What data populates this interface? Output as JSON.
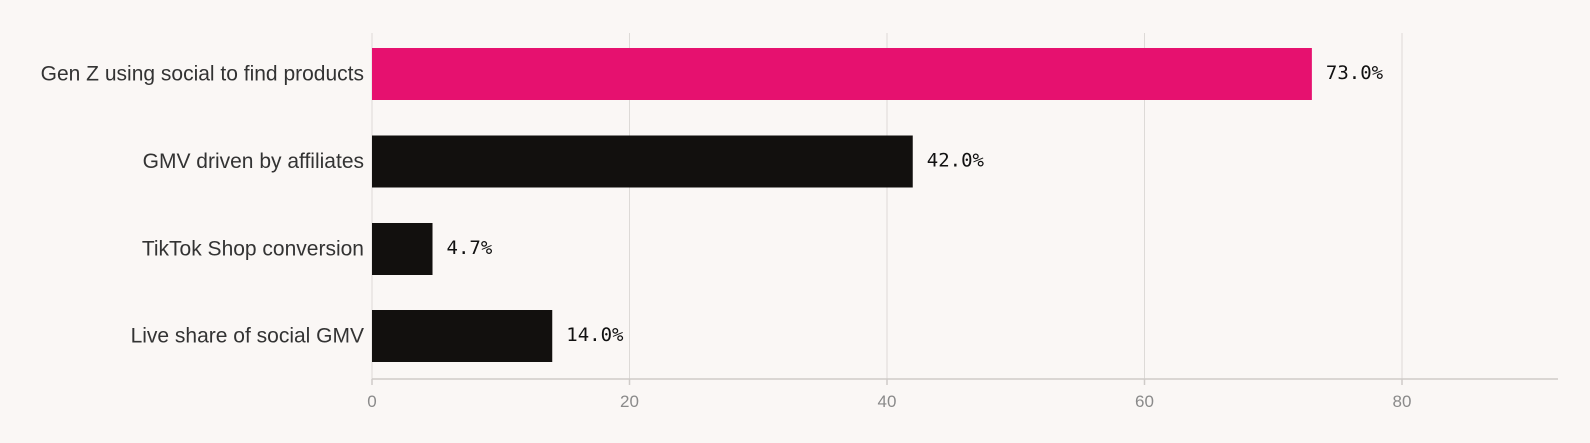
{
  "chart_data": {
    "type": "bar",
    "orientation": "horizontal",
    "categories": [
      "Gen Z using social to find products",
      "GMV driven by affiliates",
      "TikTok Shop conversion",
      "Live share of social GMV"
    ],
    "values": [
      73.0,
      42.0,
      4.7,
      14.0
    ],
    "value_labels": [
      "73.0%",
      "42.0%",
      "4.7%",
      "14.0%"
    ],
    "xlim": [
      0,
      92
    ],
    "xticks": [
      0,
      20,
      40,
      60,
      80
    ],
    "grid": true,
    "title": "",
    "xlabel": "",
    "ylabel": "",
    "colors": {
      "highlight": "#e6116f",
      "default": "#12100e",
      "background": "#faf7f5"
    },
    "highlight_index": 0
  }
}
